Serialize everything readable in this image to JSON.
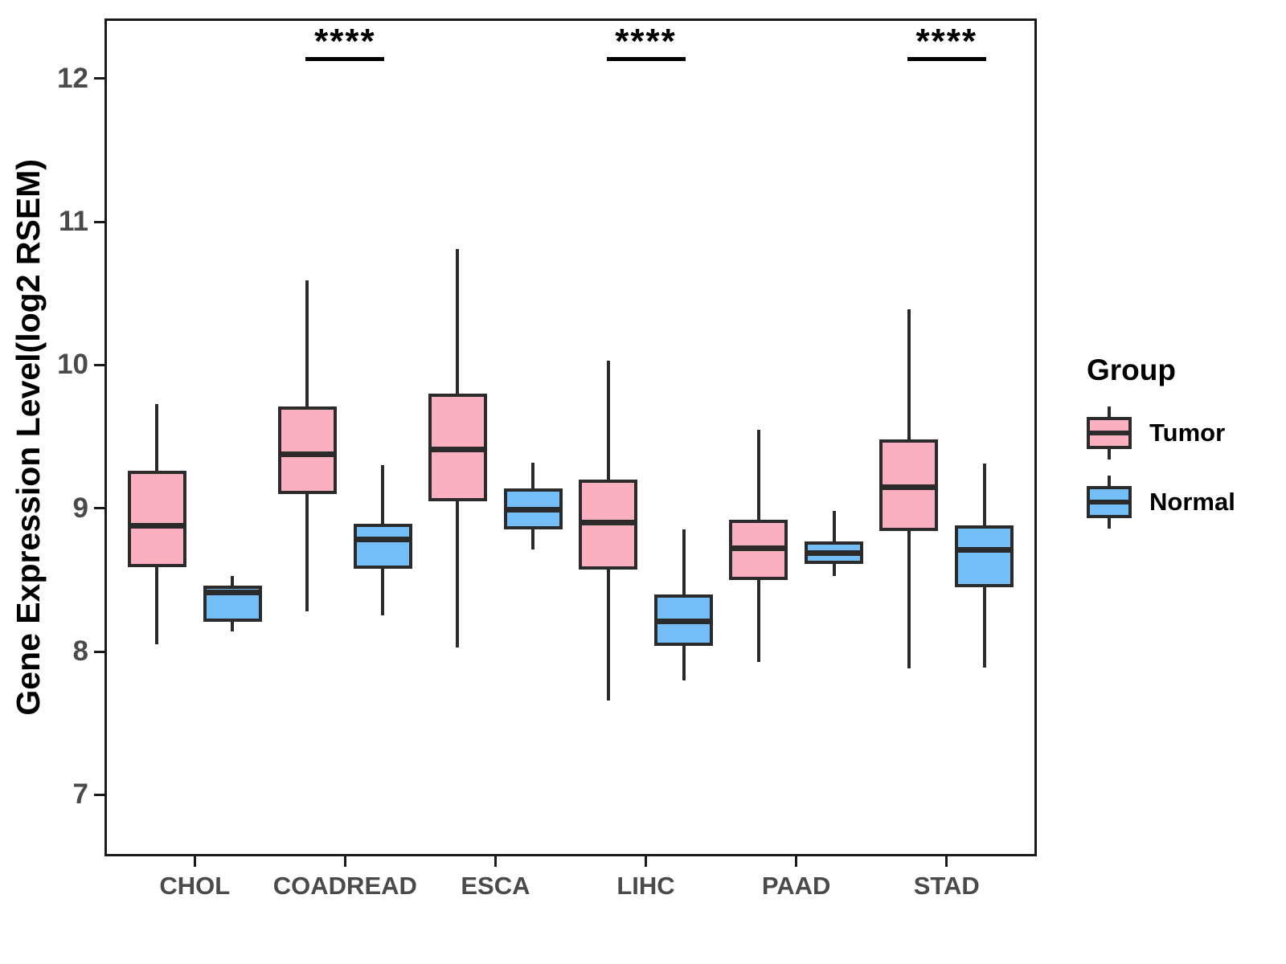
{
  "chart_data": {
    "type": "boxplot",
    "title": "",
    "xlabel": "",
    "ylabel": "Gene Expression Level(log2 RSEM)",
    "categories": [
      "CHOL",
      "COADREAD",
      "ESCA",
      "LIHC",
      "PAAD",
      "STAD"
    ],
    "y_axis": {
      "ticks": [
        7,
        8,
        9,
        10,
        11,
        12
      ],
      "min": 6.57,
      "max": 12.42,
      "grid": false
    },
    "legend": {
      "title": "Group",
      "position": "right"
    },
    "outline_color": "#2b2b2b",
    "series": [
      {
        "name": "Tumor",
        "color": "#FBB0C1",
        "values": [
          {
            "category": "CHOL",
            "low": 8.05,
            "q1": 8.59,
            "median": 8.88,
            "q3": 9.26,
            "high": 9.73
          },
          {
            "category": "COADREAD",
            "low": 8.28,
            "q1": 9.1,
            "median": 9.38,
            "q3": 9.71,
            "high": 10.59
          },
          {
            "category": "ESCA",
            "low": 8.03,
            "q1": 9.05,
            "median": 9.41,
            "q3": 9.8,
            "high": 10.81
          },
          {
            "category": "LIHC",
            "low": 7.66,
            "q1": 8.57,
            "median": 8.9,
            "q3": 9.2,
            "high": 10.03
          },
          {
            "category": "PAAD",
            "low": 7.93,
            "q1": 8.5,
            "median": 8.72,
            "q3": 8.92,
            "high": 9.55
          },
          {
            "category": "STAD",
            "low": 7.88,
            "q1": 8.84,
            "median": 9.15,
            "q3": 9.48,
            "high": 10.39
          }
        ]
      },
      {
        "name": "Normal",
        "color": "#74BEF8",
        "values": [
          {
            "category": "CHOL",
            "low": 8.14,
            "q1": 8.21,
            "median": 8.41,
            "q3": 8.46,
            "high": 8.53
          },
          {
            "category": "COADREAD",
            "low": 8.25,
            "q1": 8.58,
            "median": 8.78,
            "q3": 8.89,
            "high": 9.3
          },
          {
            "category": "ESCA",
            "low": 8.71,
            "q1": 8.85,
            "median": 8.99,
            "q3": 9.14,
            "high": 9.32
          },
          {
            "category": "LIHC",
            "low": 7.8,
            "q1": 8.04,
            "median": 8.21,
            "q3": 8.4,
            "high": 8.85
          },
          {
            "category": "PAAD",
            "low": 8.53,
            "q1": 8.61,
            "median": 8.69,
            "q3": 8.77,
            "high": 8.98
          },
          {
            "category": "STAD",
            "low": 7.89,
            "q1": 8.45,
            "median": 8.71,
            "q3": 8.88,
            "high": 9.31
          }
        ]
      }
    ],
    "significance": [
      {
        "category": "COADREAD",
        "label": "****"
      },
      {
        "category": "LIHC",
        "label": "****"
      },
      {
        "category": "STAD",
        "label": "****"
      }
    ]
  }
}
